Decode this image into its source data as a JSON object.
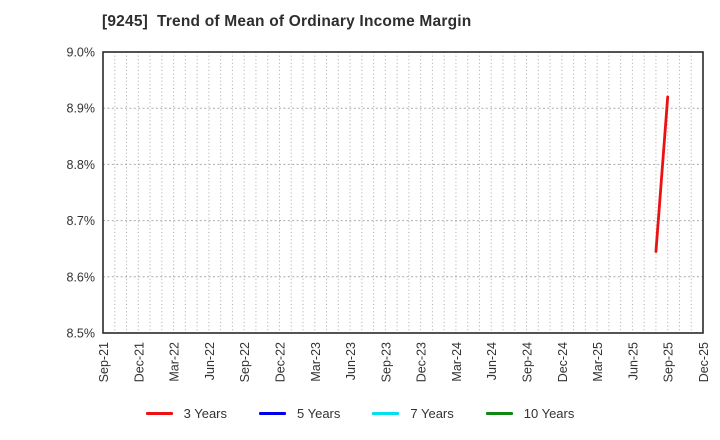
{
  "title": "[9245]  Trend of Mean of Ordinary Income Margin",
  "chart_data": {
    "type": "line",
    "title": "[9245]  Trend of Mean of Ordinary Income Margin",
    "x_tick_labels": [
      "Sep-21",
      "Dec-21",
      "Mar-22",
      "Jun-22",
      "Sep-22",
      "Dec-22",
      "Mar-23",
      "Jun-23",
      "Sep-23",
      "Dec-23",
      "Mar-24",
      "Jun-24",
      "Sep-24",
      "Dec-24",
      "Mar-25",
      "Jun-25",
      "Sep-25",
      "Dec-25"
    ],
    "x_axis_total_months": 51,
    "months_per_major_tick": 3,
    "y_tick_labels": [
      "9.0%",
      "8.9%",
      "8.8%",
      "8.7%",
      "8.6%",
      "8.5%"
    ],
    "ylim": [
      8.5,
      9.0
    ],
    "y_grid_step": 0.1,
    "grid_style": "dotted",
    "legend_position": "bottom-center",
    "series": [
      {
        "name": "3 Years",
        "color": "#ee1111",
        "points": [
          {
            "label": "Aug-25",
            "month_index": 47,
            "value": 8.645
          },
          {
            "label": "Sep-25",
            "month_index": 48,
            "value": 8.92
          }
        ]
      },
      {
        "name": "5 Years",
        "color": "#0000ee",
        "points": []
      },
      {
        "name": "7 Years",
        "color": "#00e1ee",
        "points": []
      },
      {
        "name": "10 Years",
        "color": "#118811",
        "points": []
      }
    ]
  },
  "legend": [
    {
      "label": "3 Years",
      "color": "#ee1111"
    },
    {
      "label": "5 Years",
      "color": "#0000ee"
    },
    {
      "label": "7 Years",
      "color": "#00e1ee"
    },
    {
      "label": "10 Years",
      "color": "#118811"
    }
  ],
  "colors": {
    "frame": "#2a2a2a",
    "grid": "#a9a9a9",
    "tick_text": "#333333",
    "title_text": "#2e2e2e"
  }
}
